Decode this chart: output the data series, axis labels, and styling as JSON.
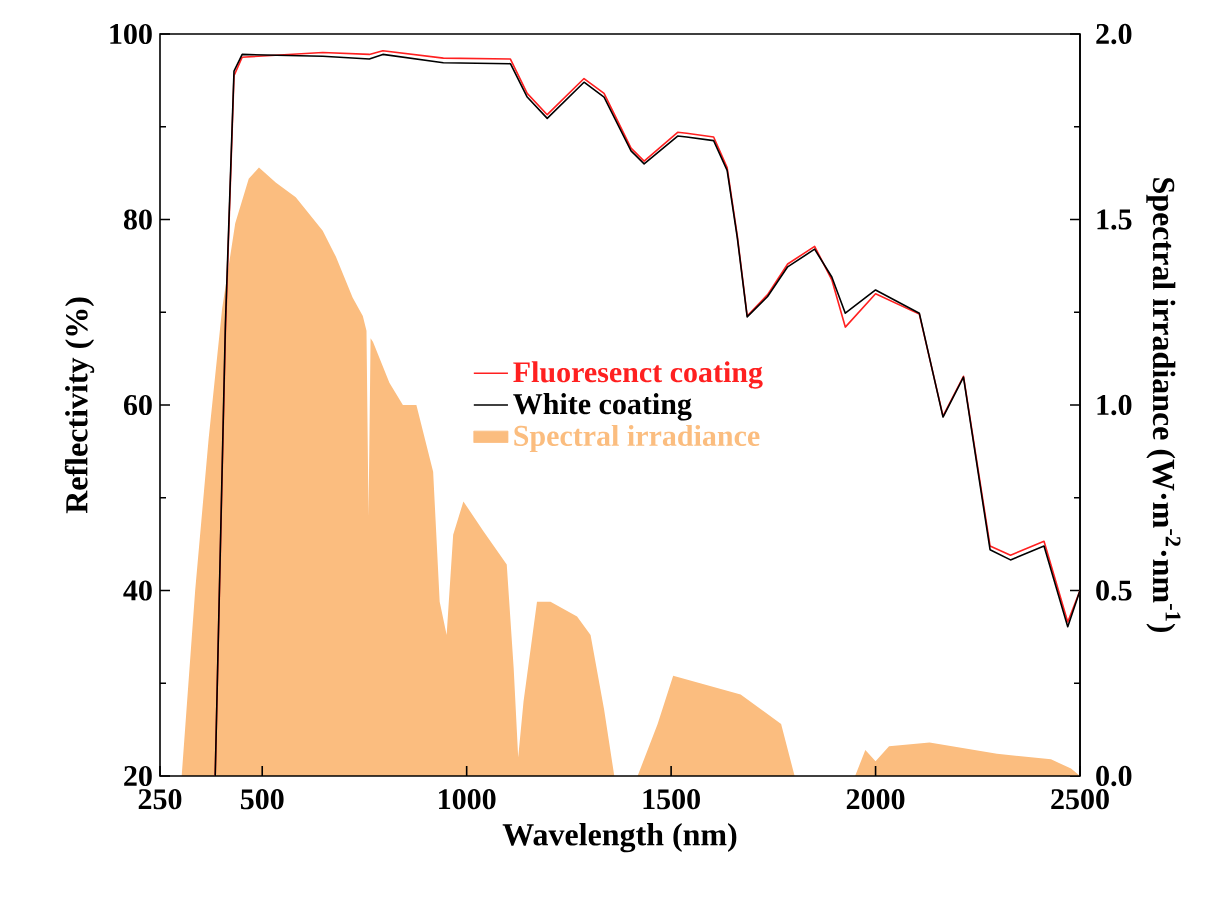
{
  "chart_data": {
    "type": "line",
    "xlabel": "Wavelength (nm)",
    "ylabel": "Reflectivity (%)",
    "y2label": "Spectral irradiance (W·m$^{-2}$·nm$^{-1}$)",
    "xlim": [
      250,
      2500
    ],
    "xticks": [
      250,
      500,
      1000,
      1500,
      2000,
      2500
    ],
    "ylim": [
      20,
      100
    ],
    "yticks": [
      20,
      40,
      60,
      80,
      100
    ],
    "y2lim": [
      0,
      2.0
    ],
    "y2ticks": [
      {
        "value": 0,
        "label": "0.0"
      },
      {
        "value": 0.5,
        "label": "0.5"
      },
      {
        "value": 1.0,
        "label": "1.0"
      },
      {
        "value": 1.5,
        "label": "1.5"
      },
      {
        "value": 2.0,
        "label": "2.0"
      }
    ],
    "legend": "center",
    "series": [
      {
        "name": "Fluoresenct coating",
        "color": "#ff2020",
        "x": [
          385,
          410,
          431,
          451,
          648,
          762,
          795,
          943,
          1107,
          1148,
          1197,
          1287,
          1336,
          1402,
          1434,
          1516,
          1538,
          1604,
          1637,
          1662,
          1686,
          1736,
          1785,
          1851,
          1893,
          1926,
          2000,
          2107,
          2165,
          2215,
          2280,
          2330,
          2412,
          2470,
          2500
        ],
        "values": [
          20,
          68,
          95.5,
          97.5,
          98,
          97.8,
          98.2,
          97.4,
          97.3,
          93.6,
          91.3,
          95.2,
          93.6,
          87.7,
          86.3,
          89.4,
          89.3,
          88.9,
          85.6,
          78.2,
          69.6,
          71.9,
          75.2,
          77.1,
          73.5,
          68.4,
          72,
          69.8,
          58.8,
          63.1,
          44.8,
          43.8,
          45.3,
          36.6,
          40
        ]
      },
      {
        "name": "White coating",
        "color": "#000000",
        "x": [
          385,
          410,
          431,
          451,
          648,
          762,
          795,
          943,
          1107,
          1148,
          1197,
          1287,
          1336,
          1402,
          1434,
          1516,
          1538,
          1604,
          1637,
          1662,
          1686,
          1736,
          1785,
          1851,
          1893,
          1926,
          2000,
          2107,
          2165,
          2215,
          2280,
          2330,
          2412,
          2470,
          2500
        ],
        "values": [
          20,
          68.8,
          96,
          97.8,
          97.6,
          97.3,
          97.8,
          96.9,
          96.8,
          93.2,
          90.9,
          94.8,
          93.2,
          87.4,
          86,
          89,
          88.9,
          88.5,
          85.3,
          78,
          69.5,
          71.7,
          74.9,
          76.8,
          73.8,
          69.9,
          72.4,
          69.9,
          58.7,
          63,
          44.4,
          43.3,
          44.8,
          36.1,
          40
        ]
      },
      {
        "name": "Spectral irradiance",
        "color": "#fbbd7f",
        "type": "area",
        "axis": "y2",
        "x": [
          303,
          336,
          369,
          402,
          434,
          467,
          492,
          533,
          582,
          648,
          680,
          721,
          746,
          755,
          760,
          765,
          771,
          811,
          844,
          877,
          918,
          934,
          951,
          967,
          992,
          1041,
          1098,
          1115,
          1126,
          1139,
          1172,
          1205,
          1270,
          1303,
          1336,
          1361,
          1418,
          1467,
          1505,
          1571,
          1670,
          1769,
          1802,
          1950,
          1975,
          2000,
          2033,
          2132,
          2297,
          2429,
          2478,
          2500
        ],
        "values": [
          0,
          0.5,
          0.91,
          1.26,
          1.49,
          1.61,
          1.64,
          1.6,
          1.56,
          1.47,
          1.4,
          1.29,
          1.24,
          1.2,
          0.7,
          1.18,
          1.17,
          1.06,
          1,
          1,
          0.82,
          0.47,
          0.38,
          0.65,
          0.74,
          0.66,
          0.57,
          0.29,
          0.05,
          0.2,
          0.47,
          0.47,
          0.43,
          0.38,
          0.18,
          0,
          0,
          0.14,
          0.27,
          0.25,
          0.22,
          0.14,
          0,
          0,
          0.07,
          0.04,
          0.08,
          0.09,
          0.06,
          0.045,
          0.02,
          0
        ]
      }
    ]
  }
}
